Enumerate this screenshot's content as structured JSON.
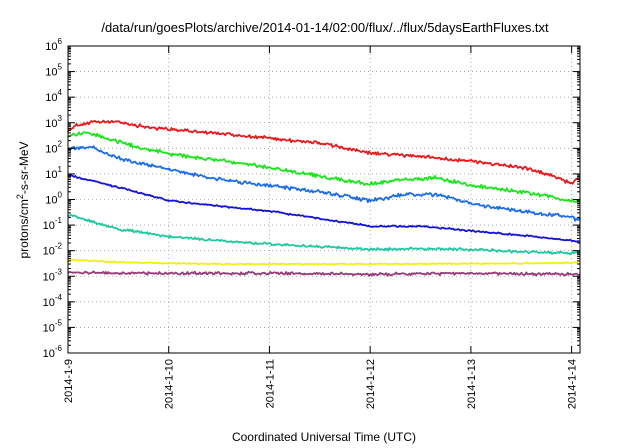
{
  "chart_data": {
    "type": "line",
    "title": "/data/run/goesPlots/archive/2014-01-14/02:00/flux/../flux/5daysEarthFluxes.txt",
    "xlabel": "Coordinated Universal Time (UTC)",
    "ylabel": {
      "prefix": "protons/cm",
      "sup": "2",
      "suffix": "-s-sr-MeV"
    },
    "x_ticks": [
      "2014-1-9",
      "2014-1-10",
      "2014-1-11",
      "2014-1-12",
      "2014-1-13",
      "2014-1-14"
    ],
    "y_ticks": [
      {
        "exp": 6,
        "base": "10",
        "power": "6"
      },
      {
        "exp": 5,
        "base": "10",
        "power": "5"
      },
      {
        "exp": 4,
        "base": "10",
        "power": "4"
      },
      {
        "exp": 3,
        "base": "10",
        "power": "3"
      },
      {
        "exp": 2,
        "base": "10",
        "power": "2"
      },
      {
        "exp": 1,
        "base": "10",
        "power": "1"
      },
      {
        "exp": 0,
        "base": "10",
        "power": "0"
      },
      {
        "exp": -1,
        "base": "10",
        "power": "-1"
      },
      {
        "exp": -2,
        "base": "10",
        "power": "-2"
      },
      {
        "exp": -3,
        "base": "10",
        "power": "-3"
      },
      {
        "exp": -4,
        "base": "10",
        "power": "-4"
      },
      {
        "exp": -5,
        "base": "10",
        "power": "-5"
      },
      {
        "exp": -6,
        "base": "10",
        "power": "-6"
      }
    ],
    "xlim": [
      "2014-01-09",
      "2014-01-14T02:00"
    ],
    "ylim": [
      1e-06,
      1000000.0
    ],
    "yscale": "log",
    "grid": true,
    "series": [
      {
        "color": "#e8191c",
        "noise": 0.08,
        "points": [
          [
            "2014-01-09T00:00",
            500
          ],
          [
            "2014-01-09T02:00",
            800
          ],
          [
            "2014-01-09T06:00",
            1050
          ],
          [
            "2014-01-09T12:00",
            1100
          ],
          [
            "2014-01-09T18:00",
            700
          ],
          [
            "2014-01-10T00:00",
            550
          ],
          [
            "2014-01-10T12:00",
            380
          ],
          [
            "2014-01-11T00:00",
            250
          ],
          [
            "2014-01-11T12:00",
            160
          ],
          [
            "2014-01-12T00:00",
            65
          ],
          [
            "2014-01-12T12:00",
            48
          ],
          [
            "2014-01-13T00:00",
            32
          ],
          [
            "2014-01-13T12:00",
            18
          ],
          [
            "2014-01-13T20:00",
            8
          ],
          [
            "2014-01-14T00:00",
            4
          ],
          [
            "2014-01-14T01:00",
            6
          ],
          [
            "2014-01-14T02:00",
            6.5
          ]
        ]
      },
      {
        "color": "#19e619",
        "noise": 0.09,
        "points": [
          [
            "2014-01-09T00:00",
            300
          ],
          [
            "2014-01-09T04:00",
            420
          ],
          [
            "2014-01-09T08:00",
            280
          ],
          [
            "2014-01-09T16:00",
            120
          ],
          [
            "2014-01-10T00:00",
            60
          ],
          [
            "2014-01-10T12:00",
            35
          ],
          [
            "2014-01-11T00:00",
            18
          ],
          [
            "2014-01-11T12:00",
            8
          ],
          [
            "2014-01-12T00:00",
            4
          ],
          [
            "2014-01-12T08:00",
            6
          ],
          [
            "2014-01-12T16:00",
            7
          ],
          [
            "2014-01-13T00:00",
            3.5
          ],
          [
            "2014-01-13T12:00",
            2
          ],
          [
            "2014-01-14T00:00",
            0.9
          ],
          [
            "2014-01-14T02:00",
            0.8
          ]
        ]
      },
      {
        "color": "#1a6ee8",
        "noise": 0.09,
        "points": [
          [
            "2014-01-09T00:00",
            100
          ],
          [
            "2014-01-09T06:00",
            110
          ],
          [
            "2014-01-09T12:00",
            40
          ],
          [
            "2014-01-10T00:00",
            15
          ],
          [
            "2014-01-10T12:00",
            6
          ],
          [
            "2014-01-11T00:00",
            3.5
          ],
          [
            "2014-01-11T12:00",
            2
          ],
          [
            "2014-01-12T00:00",
            0.9
          ],
          [
            "2014-01-12T08:00",
            1.5
          ],
          [
            "2014-01-12T16:00",
            1.6
          ],
          [
            "2014-01-13T00:00",
            0.7
          ],
          [
            "2014-01-13T12:00",
            0.35
          ],
          [
            "2014-01-14T00:00",
            0.2
          ],
          [
            "2014-01-14T02:00",
            0.15
          ]
        ]
      },
      {
        "color": "#1414d2",
        "noise": 0.04,
        "points": [
          [
            "2014-01-09T00:00",
            9
          ],
          [
            "2014-01-09T12:00",
            3
          ],
          [
            "2014-01-10T00:00",
            0.9
          ],
          [
            "2014-01-10T12:00",
            0.55
          ],
          [
            "2014-01-11T00:00",
            0.35
          ],
          [
            "2014-01-11T12:00",
            0.18
          ],
          [
            "2014-01-12T00:00",
            0.09
          ],
          [
            "2014-01-12T12:00",
            0.09
          ],
          [
            "2014-01-13T00:00",
            0.06
          ],
          [
            "2014-01-13T12:00",
            0.04
          ],
          [
            "2014-01-14T00:00",
            0.025
          ],
          [
            "2014-01-14T02:00",
            0.022
          ]
        ]
      },
      {
        "color": "#1ec8a0",
        "noise": 0.06,
        "points": [
          [
            "2014-01-09T00:00",
            0.25
          ],
          [
            "2014-01-09T12:00",
            0.07
          ],
          [
            "2014-01-10T00:00",
            0.035
          ],
          [
            "2014-01-10T12:00",
            0.025
          ],
          [
            "2014-01-11T00:00",
            0.018
          ],
          [
            "2014-01-11T12:00",
            0.014
          ],
          [
            "2014-01-12T00:00",
            0.011
          ],
          [
            "2014-01-12T12:00",
            0.012
          ],
          [
            "2014-01-13T00:00",
            0.011
          ],
          [
            "2014-01-13T12:00",
            0.009
          ],
          [
            "2014-01-14T00:00",
            0.008
          ],
          [
            "2014-01-14T02:00",
            0.009
          ]
        ]
      },
      {
        "color": "#f0f014",
        "noise": 0.03,
        "points": [
          [
            "2014-01-09T00:00",
            0.0045
          ],
          [
            "2014-01-09T12:00",
            0.0035
          ],
          [
            "2014-01-10T12:00",
            0.003
          ],
          [
            "2014-01-12T00:00",
            0.003
          ],
          [
            "2014-01-13T12:00",
            0.0032
          ],
          [
            "2014-01-14T02:00",
            0.0034
          ]
        ]
      },
      {
        "color": "#963c78",
        "noise": 0.07,
        "points": [
          [
            "2014-01-09T00:00",
            0.0014
          ],
          [
            "2014-01-10T00:00",
            0.0013
          ],
          [
            "2014-01-11T00:00",
            0.0013
          ],
          [
            "2014-01-12T00:00",
            0.0012
          ],
          [
            "2014-01-13T00:00",
            0.0013
          ],
          [
            "2014-01-14T02:00",
            0.0012
          ]
        ]
      }
    ]
  }
}
